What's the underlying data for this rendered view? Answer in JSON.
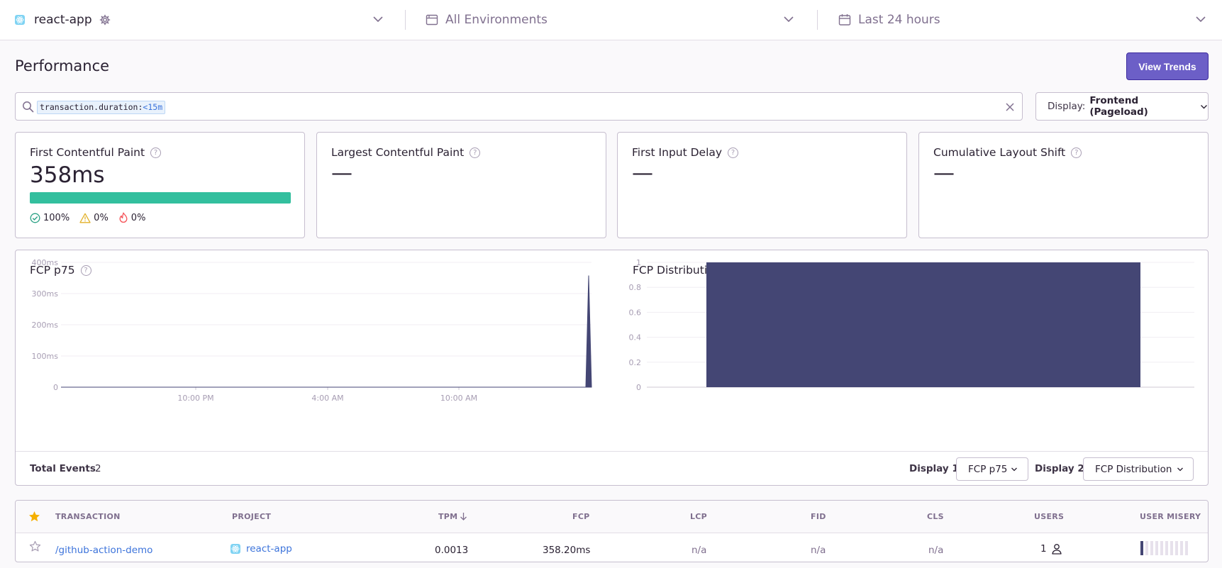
{
  "topbar": {
    "project": "react-app",
    "environment": "All Environments",
    "period": "Last 24 hours"
  },
  "header": {
    "title": "Performance",
    "view_trends": "View Trends"
  },
  "search": {
    "key": "transaction.duration:",
    "op": "<",
    "val": "15m"
  },
  "display": {
    "prefix": "Display:",
    "value": "Frontend (Pageload)"
  },
  "vitals": [
    {
      "title": "First Contentful Paint",
      "value": "358ms",
      "good_pct": 100,
      "good": "100%",
      "meh": "0%",
      "poor": "0%"
    },
    {
      "title": "Largest Contentful Paint",
      "value": "—"
    },
    {
      "title": "First Input Delay",
      "value": "—"
    },
    {
      "title": "Cumulative Layout Shift",
      "value": "—"
    }
  ],
  "chart_data": [
    {
      "type": "area",
      "title": "FCP p75",
      "y_ticks": [
        "400ms",
        "300ms",
        "200ms",
        "100ms",
        "0"
      ],
      "x_ticks": [
        "10:00 PM",
        "4:00 AM",
        "10:00 AM"
      ],
      "ylim": [
        0,
        400
      ],
      "series": [
        {
          "values": [
            0,
            0,
            0,
            0,
            0,
            0,
            0,
            0,
            0,
            0,
            358,
            0
          ]
        }
      ],
      "color": "#444674"
    },
    {
      "type": "bar",
      "title": "FCP Distribution",
      "y_ticks": [
        "1",
        "0.8",
        "0.6",
        "0.4",
        "0.2",
        "0"
      ],
      "ylim": [
        0,
        1
      ],
      "values": [
        1
      ],
      "color": "#444674"
    }
  ],
  "footer": {
    "total_label": "Total Events",
    "total_value": "2",
    "display1_label": "Display 1",
    "display1_value": "FCP p75",
    "display2_label": "Display 2",
    "display2_value": "FCP Distribution"
  },
  "table": {
    "headers": [
      "TRANSACTION",
      "PROJECT",
      "TPM",
      "FCP",
      "LCP",
      "FID",
      "CLS",
      "USERS",
      "USER MISERY"
    ],
    "rows": [
      {
        "transaction": "/github-action-demo",
        "project": "react-app",
        "tpm": "0.0013",
        "fcp": "358.20ms",
        "lcp": "n/a",
        "fid": "n/a",
        "cls": "n/a",
        "users": "1",
        "user_misery_level": 1,
        "user_misery_max": 10
      }
    ]
  },
  "colors": {
    "accent": "#6c5fc7",
    "good": "#33bf9e",
    "chart": "#444674",
    "link": "#3d74db"
  }
}
